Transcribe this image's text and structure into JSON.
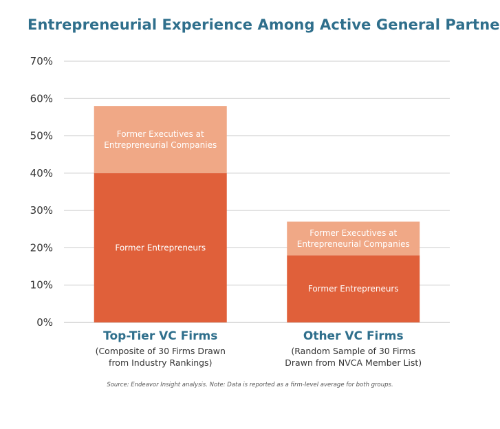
{
  "chart_data": {
    "type": "bar",
    "stacked": true,
    "title": "Entrepreneurial Experience Among Active General Partners",
    "categories": [
      {
        "name": "Top-Tier VC Firms",
        "subtitle": [
          "(Composite of 30 Firms Drawn",
          "from Industry Rankings)"
        ]
      },
      {
        "name": "Other VC Firms",
        "subtitle": [
          "(Random Sample of 30 Firms",
          "Drawn from NVCA Member List)"
        ]
      }
    ],
    "series": [
      {
        "name": "Former Entrepreneurs",
        "labels": [
          [
            "Former Entrepreneurs"
          ],
          [
            "Former Entrepreneurs"
          ]
        ],
        "values": [
          40,
          18
        ],
        "color": "#e0603a"
      },
      {
        "name": "Former Executives at Entrepreneurial Companies",
        "labels": [
          [
            "Former Executives at",
            "Entrepreneurial Companies"
          ],
          [
            "Former Executives at",
            "Entrepreneurial Companies"
          ]
        ],
        "values": [
          18,
          9
        ],
        "color": "#f0a886"
      }
    ],
    "ylim": [
      0,
      70
    ],
    "yticks": [
      "0%",
      "10%",
      "20%",
      "30%",
      "40%",
      "50%",
      "60%",
      "70%"
    ],
    "grid": true,
    "source": "Source: Endeavor Insight analysis. Note: Data is reported as a firm-level average for both groups."
  }
}
